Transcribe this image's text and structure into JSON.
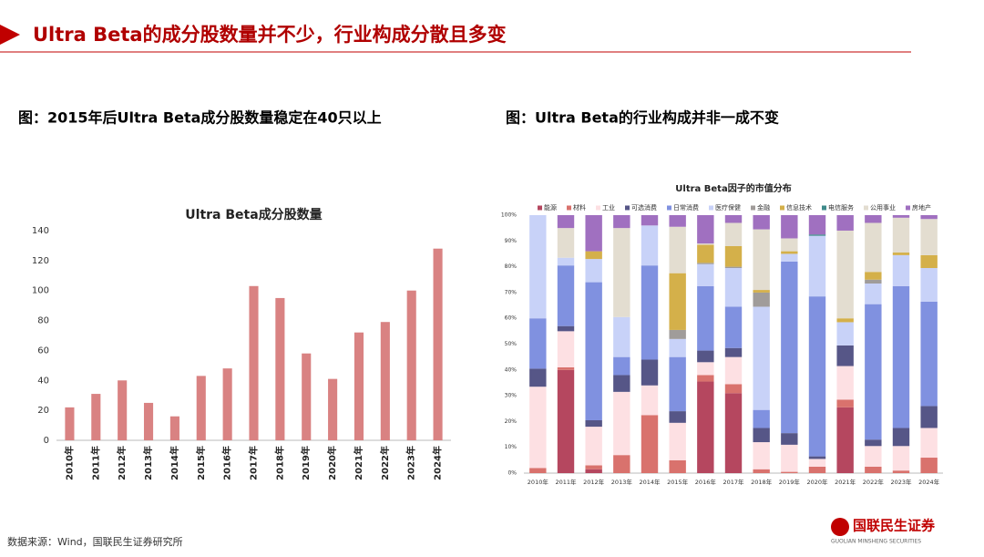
{
  "title": "Ultra Beta的成分股数量并不少，行业构成分散且多变",
  "left_caption": "图：2015年后Ultra Beta成分股数量稳定在40只以上",
  "right_caption": "图：Ultra Beta的行业构成并非一成不变",
  "source": "数据来源：Wind，国联民生证券研究所",
  "logo": {
    "name": "国联民生证券",
    "sub": "GUOLIAN MINSHENG SECURITIES"
  },
  "chart_data": [
    {
      "type": "bar",
      "title": "Ultra Beta成分股数量",
      "categories": [
        "2010年",
        "2011年",
        "2012年",
        "2013年",
        "2014年",
        "2015年",
        "2016年",
        "2017年",
        "2018年",
        "2019年",
        "2020年",
        "2021年",
        "2022年",
        "2023年",
        "2024年"
      ],
      "values": [
        22,
        31,
        40,
        25,
        16,
        43,
        48,
        103,
        95,
        58,
        41,
        72,
        79,
        100,
        128
      ],
      "color": "#d98282",
      "ylim": [
        0,
        140
      ],
      "yticks": [
        0,
        20,
        40,
        60,
        80,
        100,
        120,
        140
      ],
      "grid": false
    },
    {
      "type": "stacked_bar",
      "title": "Ultra Beta因子的市值分布",
      "categories": [
        "2010年",
        "2011年",
        "2012年",
        "2013年",
        "2014年",
        "2015年",
        "2016年",
        "2017年",
        "2018年",
        "2019年",
        "2020年",
        "2021年",
        "2022年",
        "2023年",
        "2024年"
      ],
      "legend": "top",
      "ylim": [
        0,
        100
      ],
      "yticks": [
        {
          "value": 0,
          "label": "0%"
        },
        {
          "value": 10,
          "label": "10%"
        },
        {
          "value": 20,
          "label": "20%"
        },
        {
          "value": 30,
          "label": "30%"
        },
        {
          "value": 40,
          "label": "40%"
        },
        {
          "value": 50,
          "label": "50%"
        },
        {
          "value": 60,
          "label": "60%"
        },
        {
          "value": 70,
          "label": "70%"
        },
        {
          "value": 80,
          "label": "80%"
        },
        {
          "value": 90,
          "label": "90%"
        },
        {
          "value": 100,
          "label": "100%"
        }
      ],
      "series": [
        {
          "name": "能源",
          "color": "#b5475f",
          "values": [
            0,
            40,
            1.5,
            0,
            0,
            0,
            35.5,
            31,
            0,
            0,
            0,
            25.5,
            0,
            0,
            0
          ]
        },
        {
          "name": "材料",
          "color": "#d9726d",
          "values": [
            2,
            1,
            1.5,
            7,
            22.5,
            5,
            2.5,
            3.5,
            1.5,
            0.5,
            2.5,
            3,
            2.5,
            1,
            6
          ]
        },
        {
          "name": "工业",
          "color": "#fde0e3",
          "values": [
            31.5,
            14,
            15,
            24.5,
            11.5,
            14.5,
            5,
            10.5,
            10.5,
            10.5,
            3,
            13,
            8,
            9.5,
            11.5
          ]
        },
        {
          "name": "可选消费",
          "color": "#565687",
          "values": [
            7,
            2,
            2.5,
            6.5,
            10,
            4.5,
            4.5,
            3.5,
            5.5,
            4.5,
            1,
            8,
            2.5,
            7,
            8.5
          ]
        },
        {
          "name": "日常消费",
          "color": "#8091e0",
          "values": [
            19.5,
            23.5,
            53.5,
            7,
            36.5,
            21,
            25,
            16,
            7,
            66.5,
            62,
            0,
            52.5,
            55,
            40.5
          ]
        },
        {
          "name": "医疗保健",
          "color": "#c8d2f8",
          "values": [
            40,
            3,
            9,
            15.5,
            15.5,
            7,
            8.5,
            15,
            40,
            3,
            23.5,
            9,
            8,
            12,
            13
          ]
        },
        {
          "name": "金融",
          "color": "#a09c9a",
          "values": [
            0,
            0,
            0,
            0,
            0,
            3.5,
            0.5,
            0.5,
            5.5,
            0,
            0,
            0,
            1.5,
            0,
            0
          ]
        },
        {
          "name": "信息技术",
          "color": "#d4b04a",
          "values": [
            0,
            0,
            3,
            0,
            0,
            22,
            7,
            8,
            1,
            1,
            0,
            1.5,
            3,
            1,
            5
          ]
        },
        {
          "name": "电信服务",
          "color": "#3e8a8a",
          "values": [
            0,
            0,
            0,
            0,
            0,
            0,
            0,
            0,
            0,
            0,
            0.5,
            0,
            0,
            0,
            0
          ]
        },
        {
          "name": "公用事业",
          "color": "#e3ddd0",
          "values": [
            0,
            11.5,
            0,
            34.5,
            0,
            18,
            0.5,
            9,
            23.5,
            5,
            0,
            34,
            19,
            13.5,
            14
          ]
        },
        {
          "name": "房地产",
          "color": "#a070c0",
          "values": [
            0,
            5,
            14,
            5,
            4,
            4.5,
            11,
            3,
            5.5,
            9,
            7.5,
            6,
            3,
            1,
            1.5
          ]
        }
      ]
    }
  ]
}
